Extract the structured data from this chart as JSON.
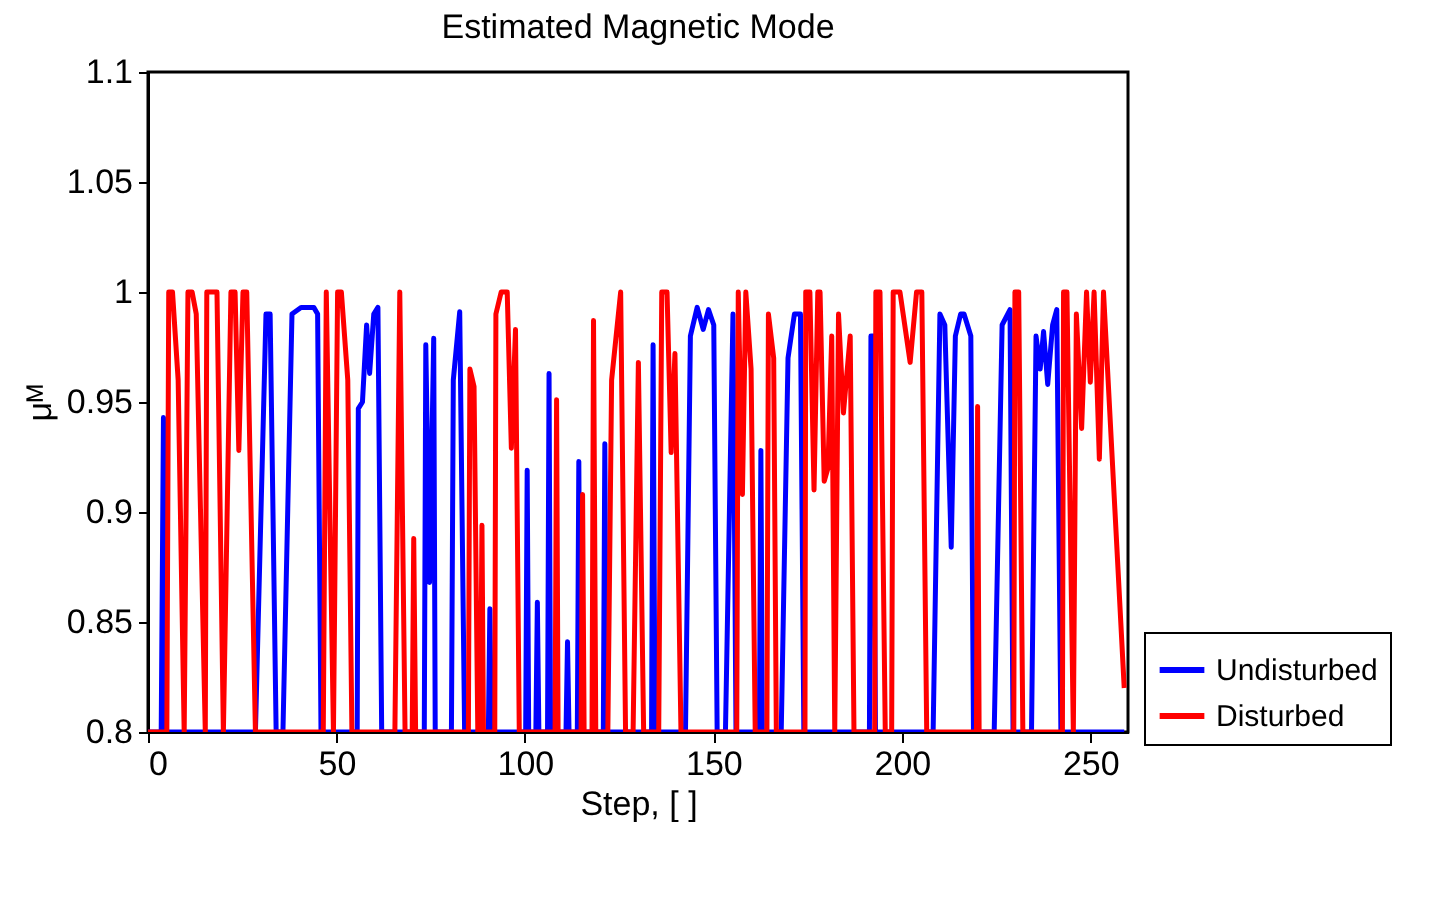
{
  "chart_data": {
    "type": "line",
    "title": "Estimated Magnetic Mode",
    "xlabel": "Step, [ ]",
    "ylabel": "μᴹ",
    "xlim": [
      0,
      260
    ],
    "xticks": [
      0,
      50,
      100,
      150,
      200,
      250
    ],
    "ylim": [
      0.8,
      1.1
    ],
    "yticks": [
      0.8,
      0.85,
      0.9,
      0.95,
      1,
      1.05,
      1.1
    ],
    "grid": false,
    "legend": "bottom right",
    "line_style": "solid",
    "series": [
      {
        "name": "Undisturbed",
        "color": "#0000ff",
        "x": [
          0,
          3.5,
          4.1,
          4.8,
          28.5,
          31.3,
          32.4,
          34,
          35.8,
          38.2,
          40.6,
          44,
          45,
          45.9,
          55.5,
          55.8,
          56.9,
          58,
          58.8,
          59.9,
          61,
          62,
          73.3,
          73.7,
          74.7,
          75.8,
          76.2,
          80.5,
          81,
          82.7,
          84,
          90.3,
          90.7,
          91.1,
          100.2,
          100.6,
          101,
          102.9,
          103.3,
          103.7,
          106,
          106.4,
          106.8,
          110.9,
          111.3,
          111.7,
          113.9,
          114.3,
          114.7,
          120.8,
          121.2,
          121.6,
          133.6,
          134,
          134.5,
          142.6,
          143.9,
          145.7,
          147.3,
          148.7,
          150.1,
          151,
          153.2,
          155.2,
          156,
          162.2,
          162.6,
          163,
          168,
          169.8,
          171.5,
          173.1,
          174,
          191.4,
          191.8,
          192.4,
          193,
          208.3,
          210.1,
          211.4,
          213.1,
          214.2,
          215.6,
          216.5,
          218.3,
          219,
          224.5,
          226.6,
          228.7,
          229.5,
          234.4,
          235.6,
          236.7,
          237.6,
          238.7,
          240,
          241.1,
          242.2,
          259
        ],
        "values": [
          0.8,
          0.8,
          0.943,
          0.8,
          0.8,
          0.99,
          0.99,
          0.8,
          0.8,
          0.99,
          0.993,
          0.993,
          0.99,
          0.8,
          0.8,
          0.947,
          0.95,
          0.985,
          0.963,
          0.99,
          0.993,
          0.8,
          0.8,
          0.976,
          0.868,
          0.979,
          0.8,
          0.8,
          0.96,
          0.991,
          0.8,
          0.8,
          0.856,
          0.8,
          0.8,
          0.919,
          0.8,
          0.8,
          0.859,
          0.8,
          0.8,
          0.963,
          0.8,
          0.8,
          0.841,
          0.8,
          0.8,
          0.923,
          0.8,
          0.8,
          0.931,
          0.8,
          0.8,
          0.976,
          0.8,
          0.8,
          0.98,
          0.993,
          0.983,
          0.992,
          0.985,
          0.8,
          0.8,
          0.99,
          0.8,
          0.8,
          0.928,
          0.8,
          0.8,
          0.97,
          0.99,
          0.99,
          0.8,
          0.8,
          0.98,
          0.98,
          0.8,
          0.8,
          0.99,
          0.985,
          0.884,
          0.98,
          0.99,
          0.99,
          0.98,
          0.8,
          0.8,
          0.985,
          0.992,
          0.8,
          0.8,
          0.98,
          0.965,
          0.982,
          0.958,
          0.985,
          0.992,
          0.8,
          0.8
        ]
      },
      {
        "name": "Disturbed",
        "color": "#ff0000",
        "x": [
          0,
          5,
          5.5,
          6.5,
          8,
          9.6,
          10.6,
          11.7,
          12.8,
          15.2,
          15.6,
          18.3,
          20,
          22,
          23.1,
          24.1,
          25.2,
          26.2,
          28.5,
          46.5,
          47.3,
          49.2,
          50.3,
          51.3,
          53,
          54.1,
          65.5,
          66.8,
          68.2,
          70.1,
          70.5,
          71,
          85,
          85.4,
          86.5,
          87.5,
          88.2,
          88.6,
          89,
          92,
          92.3,
          93.7,
          95.3,
          96.4,
          97.5,
          98.5,
          108,
          108.4,
          108.8,
          114.9,
          115.3,
          115.7,
          117.8,
          118.2,
          118.8,
          122,
          123,
          125.4,
          126.7,
          128.7,
          130.1,
          131.5,
          135.5,
          136.3,
          137.7,
          138.8,
          139.8,
          141.4,
          156.2,
          156.6,
          157.7,
          158.6,
          160,
          161.1,
          164.2,
          164.6,
          166,
          166.7,
          174.3,
          174.5,
          175.6,
          176.7,
          177.7,
          178.3,
          179.4,
          180.4,
          181.4,
          182.2,
          183.2,
          184.5,
          186.3,
          187.3,
          192.8,
          193.1,
          194.2,
          195.6,
          197.3,
          197.7,
          199.5,
          202.2,
          203.9,
          205.3,
          206.6,
          219.8,
          220.1,
          220.5,
          229.7,
          230,
          231,
          232.1,
          242.6,
          242.9,
          243.8,
          245.5,
          246.3,
          247.7,
          249,
          250,
          251,
          252.4,
          253.5,
          259
        ],
        "values": [
          0.8,
          0.8,
          1,
          1,
          0.96,
          0.8,
          1,
          1,
          0.99,
          0.8,
          1,
          1,
          0.8,
          1,
          1,
          0.928,
          1,
          1,
          0.8,
          0.8,
          1,
          0.8,
          1,
          1,
          0.96,
          0.8,
          0.8,
          1,
          0.8,
          0.8,
          0.888,
          0.8,
          0.8,
          0.965,
          0.957,
          0.8,
          0.8,
          0.894,
          0.8,
          0.8,
          0.99,
          1,
          1,
          0.929,
          0.983,
          0.8,
          0.8,
          0.951,
          0.8,
          0.8,
          0.908,
          0.8,
          0.8,
          0.987,
          0.8,
          0.8,
          0.96,
          1,
          0.8,
          0.8,
          0.968,
          0.8,
          0.8,
          1,
          1,
          0.927,
          0.972,
          0.8,
          0.8,
          1,
          0.908,
          1,
          0.965,
          0.8,
          0.8,
          0.99,
          0.97,
          0.8,
          0.8,
          1,
          1,
          0.91,
          1,
          1,
          0.914,
          0.92,
          0.98,
          0.8,
          0.99,
          0.945,
          0.98,
          0.8,
          0.8,
          1,
          1,
          0.8,
          0.8,
          1,
          1,
          0.968,
          1,
          1,
          0.8,
          0.8,
          0.948,
          0.8,
          0.8,
          1,
          1,
          0.8,
          0.8,
          1,
          1,
          0.8,
          0.99,
          0.938,
          1,
          0.959,
          1,
          0.924,
          1,
          0.82
        ]
      }
    ]
  }
}
